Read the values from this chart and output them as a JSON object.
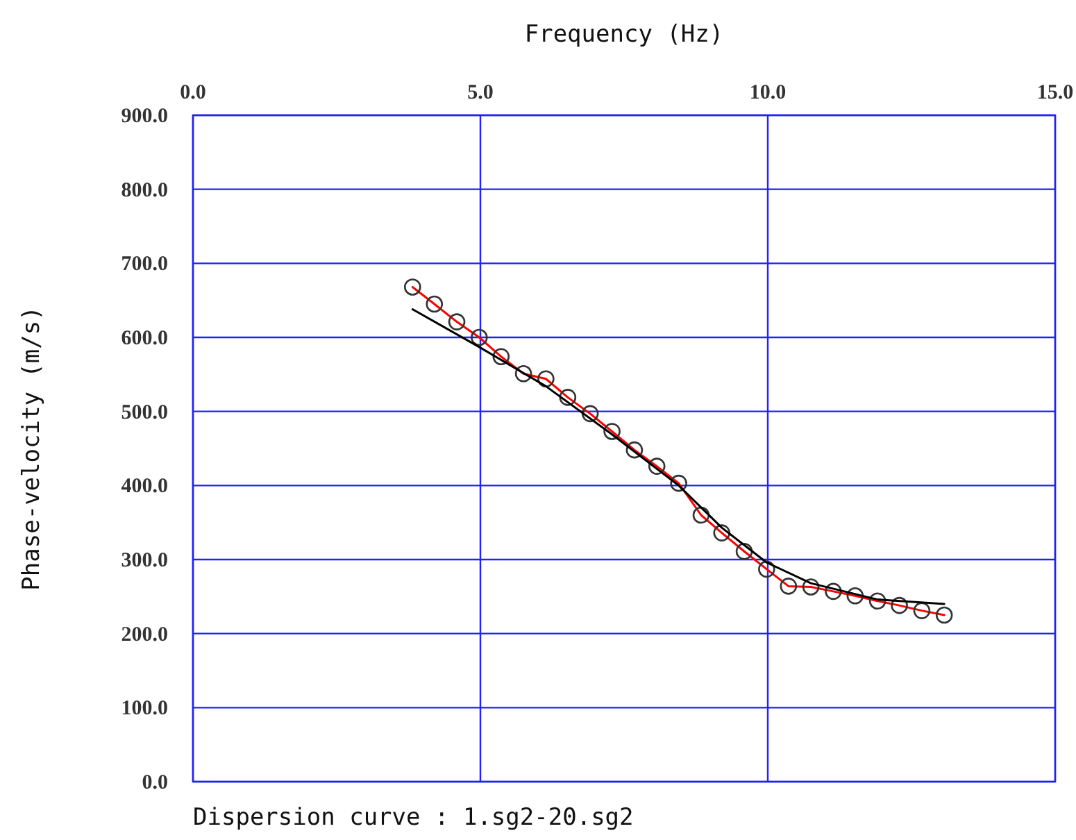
{
  "chart_data": {
    "type": "line",
    "xlabel": "Frequency (Hz)",
    "ylabel": "Phase-velocity (m/s)",
    "xlim": [
      0,
      15
    ],
    "xticks": [
      {
        "value": 0,
        "label": "0.0"
      },
      {
        "value": 5,
        "label": "5.0"
      },
      {
        "value": 10,
        "label": "10.0"
      },
      {
        "value": 15,
        "label": "15.0"
      }
    ],
    "ylim": [
      0,
      900
    ],
    "yticks": [
      {
        "value": 0,
        "label": "0.0"
      },
      {
        "value": 100,
        "label": "100.0"
      },
      {
        "value": 200,
        "label": "200.0"
      },
      {
        "value": 300,
        "label": "300.0"
      },
      {
        "value": 400,
        "label": "400.0"
      },
      {
        "value": 500,
        "label": "500.0"
      },
      {
        "value": 600,
        "label": "600.0"
      },
      {
        "value": 700,
        "label": "700.0"
      },
      {
        "value": 800,
        "label": "800.0"
      },
      {
        "value": 900,
        "label": "900.0"
      }
    ],
    "grid": true,
    "line_style": "solid",
    "series": [
      {
        "color": "#ff0000",
        "marker": "circle",
        "x": [
          3.82,
          4.2,
          4.59,
          4.98,
          5.36,
          5.75,
          6.14,
          6.52,
          6.91,
          7.29,
          7.68,
          8.07,
          8.45,
          8.84,
          9.2,
          9.59,
          9.98,
          10.36,
          10.75,
          11.14,
          11.52,
          11.91,
          12.29,
          12.68,
          13.07
        ],
        "values": [
          668,
          645,
          621,
          600,
          574,
          551,
          544,
          519,
          497,
          473,
          448,
          426,
          403,
          360,
          336,
          311,
          287,
          264,
          263,
          257,
          251,
          244,
          238,
          231,
          225
        ]
      },
      {
        "color": "#000000",
        "marker": "none",
        "x": [
          3.82,
          4.98,
          6.14,
          7.29,
          8.45,
          9.2,
          9.98,
          10.75,
          11.91,
          13.07
        ],
        "values": [
          638,
          587,
          534,
          469,
          400,
          343,
          296,
          268,
          246,
          240
        ]
      }
    ],
    "annotations": [
      "Dispersion curve : 1.sg2-20.sg2"
    ]
  }
}
